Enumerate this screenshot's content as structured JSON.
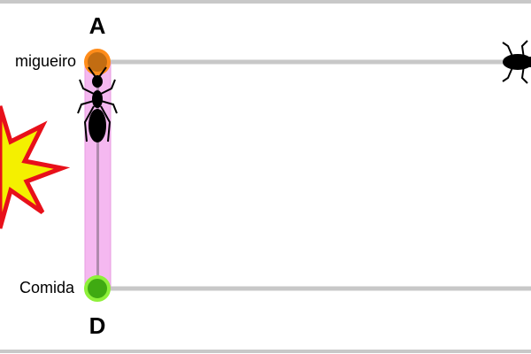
{
  "nodes": [
    {
      "letter": "A",
      "label": "migueiro"
    },
    {
      "letter": "D",
      "label": "Comida"
    }
  ]
}
